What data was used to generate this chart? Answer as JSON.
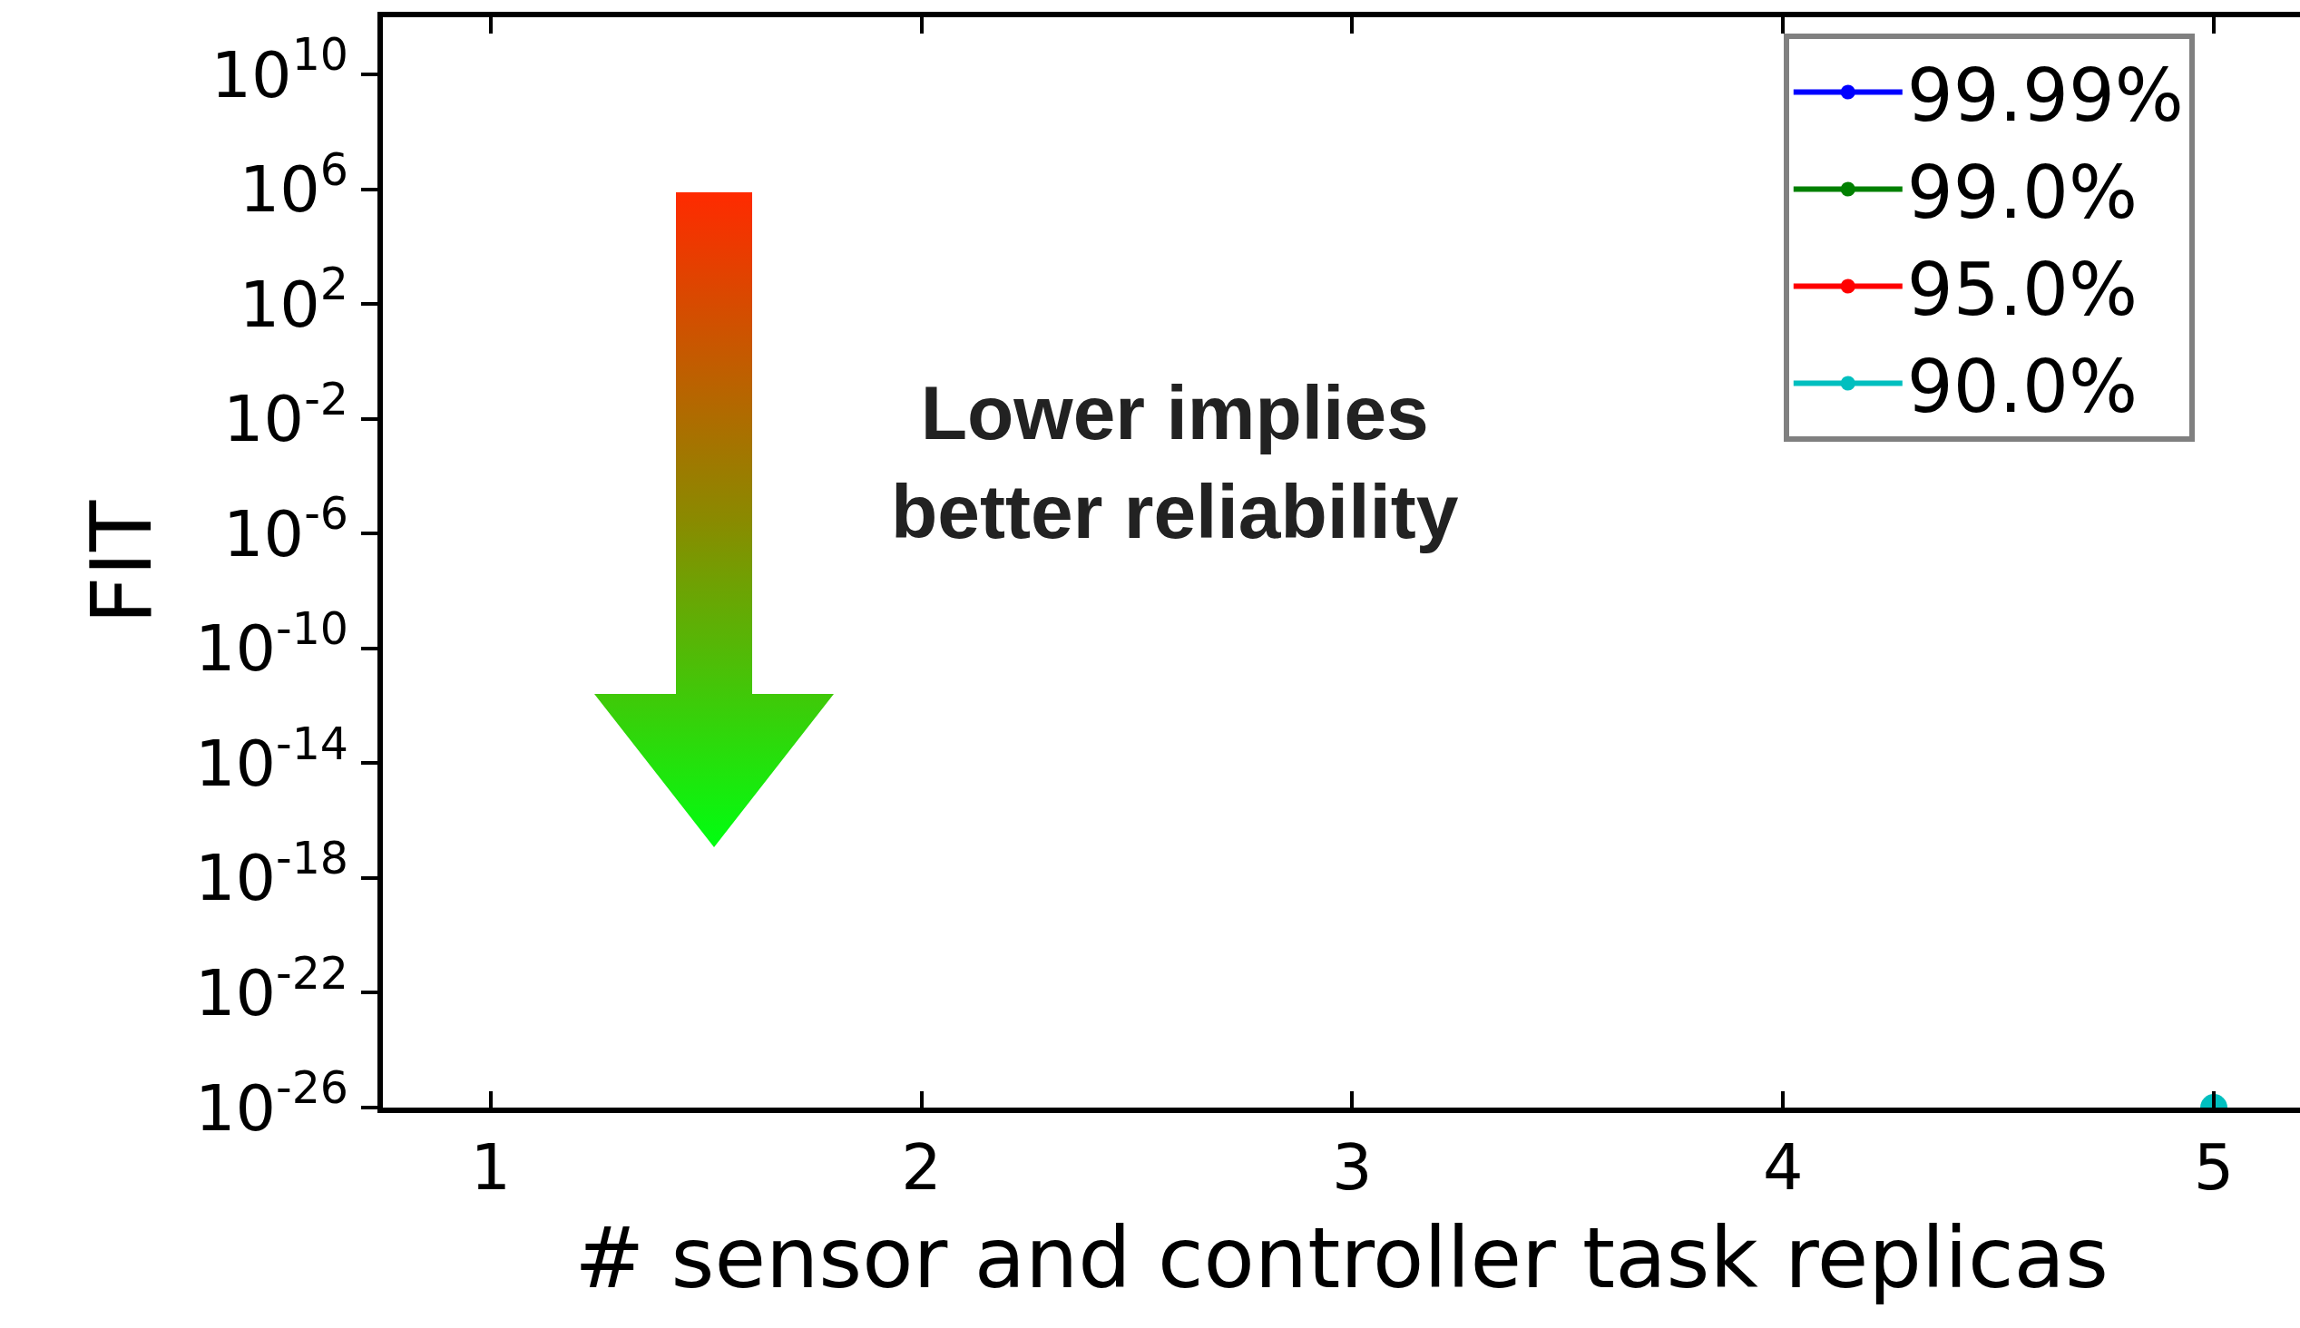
{
  "chart_data": {
    "type": "line",
    "xlabel": "# sensor and controller task replicas",
    "ylabel": "FIT",
    "x": [
      5
    ],
    "series": [
      {
        "name": "99.99%",
        "color": "#0000ff",
        "values": [
          null
        ]
      },
      {
        "name": "99.0%",
        "color": "#008000",
        "values": [
          null
        ]
      },
      {
        "name": "95.0%",
        "color": "#ff0000",
        "values": [
          null
        ]
      },
      {
        "name": "90.0%",
        "color": "#00bfbf",
        "values": [
          1e-26
        ]
      }
    ],
    "log": true,
    "xlim": [
      0.75,
      5.2
    ],
    "ylim": [
      1e-26,
      1000000000000.0
    ],
    "xticks": [
      1,
      2,
      3,
      4,
      5
    ],
    "yticks": [
      {
        "value": 10000000000.0,
        "label": "10$^{10}$"
      },
      {
        "value": 1000000.0,
        "label": "10$^{6}$"
      },
      {
        "value": 100.0,
        "label": "10$^{2}$"
      },
      {
        "value": 0.01,
        "label": "10$^{-2}$"
      },
      {
        "value": 1e-06,
        "label": "10$^{-6}$"
      },
      {
        "value": 1e-10,
        "label": "10$^{-10}$"
      },
      {
        "value": 1e-14,
        "label": "10$^{-14}$"
      },
      {
        "value": 1e-18,
        "label": "10$^{-18}$"
      },
      {
        "value": 1e-22,
        "label": "10$^{-22}$"
      },
      {
        "value": 1e-26,
        "label": "10$^{-26}$"
      }
    ],
    "legend": "top right",
    "marker": "circle",
    "line_style": "solid",
    "annotations": [
      "Lower implies\nbetter reliability"
    ]
  }
}
